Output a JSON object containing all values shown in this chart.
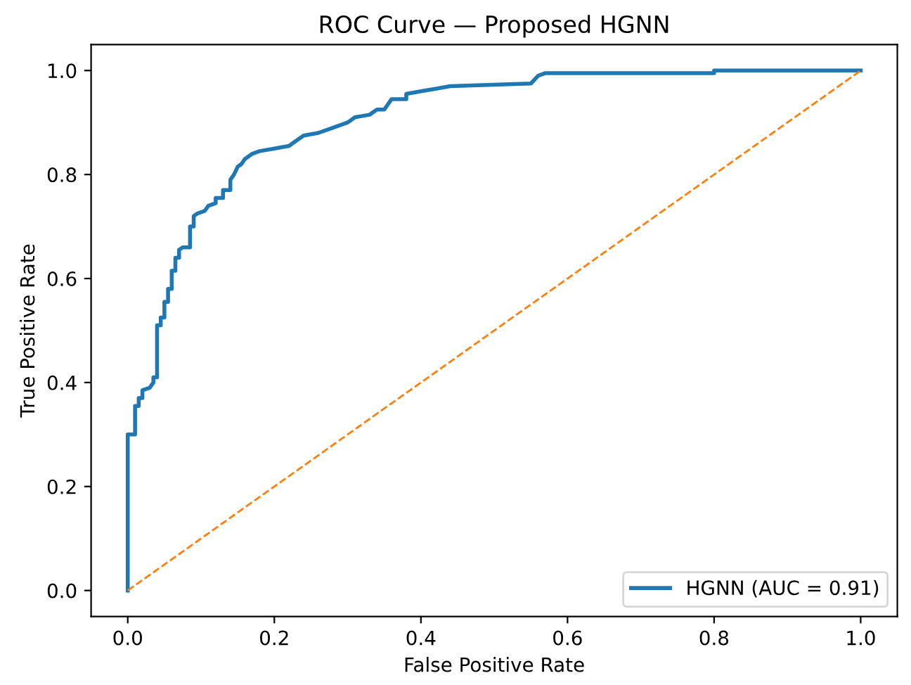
{
  "chart_data": {
    "type": "line",
    "title": "ROC Curve — Proposed HGNN",
    "xlabel": "False Positive Rate",
    "ylabel": "True Positive Rate",
    "xlim": [
      -0.05,
      1.05
    ],
    "ylim": [
      -0.05,
      1.05
    ],
    "xticks": [
      {
        "value": 0,
        "label": "0.0"
      },
      0.2,
      0.4,
      0.6,
      0.8,
      {
        "value": 1,
        "label": "1.0"
      }
    ],
    "yticks": [
      {
        "value": 0,
        "label": "0.0"
      },
      0.2,
      0.4,
      0.6,
      0.8,
      {
        "value": 1,
        "label": "1.0"
      }
    ],
    "legend": "bottom right",
    "grid": false,
    "series": [
      {
        "name": "HGNN (AUC = 0.91)",
        "color": "#1f77b4",
        "line_style": "solid",
        "x": [
          0,
          0,
          0.01,
          0.01,
          0.015,
          0.015,
          0.02,
          0.02,
          0.03,
          0.035,
          0.035,
          0.04,
          0.04,
          0.045,
          0.045,
          0.05,
          0.05,
          0.055,
          0.055,
          0.06,
          0.06,
          0.065,
          0.065,
          0.07,
          0.07,
          0.075,
          0.085,
          0.085,
          0.09,
          0.09,
          0.095,
          0.105,
          0.11,
          0.12,
          0.12,
          0.13,
          0.13,
          0.14,
          0.14,
          0.145,
          0.15,
          0.155,
          0.16,
          0.17,
          0.18,
          0.2,
          0.22,
          0.23,
          0.24,
          0.26,
          0.28,
          0.3,
          0.31,
          0.33,
          0.34,
          0.35,
          0.36,
          0.38,
          0.38,
          0.4,
          0.42,
          0.44,
          0.55,
          0.56,
          0.57,
          0.8,
          0.8,
          1.0
        ],
        "values": [
          0,
          0.3,
          0.3,
          0.355,
          0.355,
          0.37,
          0.37,
          0.385,
          0.39,
          0.4,
          0.41,
          0.41,
          0.51,
          0.51,
          0.525,
          0.525,
          0.555,
          0.555,
          0.58,
          0.58,
          0.615,
          0.615,
          0.64,
          0.64,
          0.655,
          0.66,
          0.66,
          0.7,
          0.7,
          0.72,
          0.725,
          0.73,
          0.74,
          0.745,
          0.755,
          0.755,
          0.77,
          0.77,
          0.79,
          0.8,
          0.815,
          0.82,
          0.83,
          0.84,
          0.845,
          0.85,
          0.855,
          0.865,
          0.875,
          0.88,
          0.89,
          0.9,
          0.91,
          0.915,
          0.925,
          0.925,
          0.945,
          0.945,
          0.955,
          0.96,
          0.965,
          0.97,
          0.975,
          0.99,
          0.995,
          0.995,
          1.0,
          1.0
        ]
      },
      {
        "color": "#ff7f0e",
        "line_style": "dashed",
        "x": [
          0,
          1
        ],
        "values": [
          0,
          1
        ]
      }
    ]
  }
}
